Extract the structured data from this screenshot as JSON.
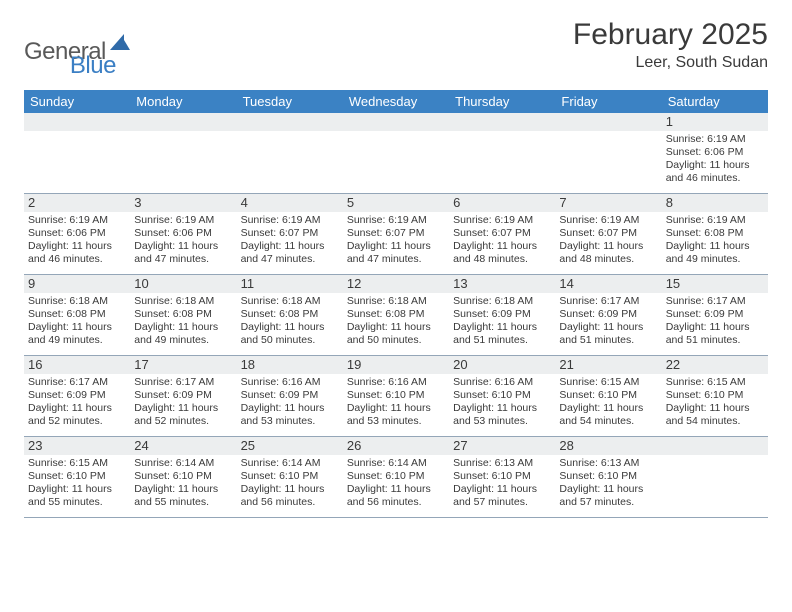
{
  "logo": {
    "text1": "General",
    "text2": "Blue",
    "color_general": "#595959",
    "color_blue": "#3b7fc4"
  },
  "header": {
    "title": "February 2025",
    "location": "Leer, South Sudan"
  },
  "colors": {
    "header_bar": "#3b82c4",
    "header_text": "#ffffff",
    "daynum_bg": "#eceeef",
    "divider": "#94a6b8",
    "body_text": "#3a3a3a",
    "background": "#ffffff"
  },
  "day_headers": [
    "Sunday",
    "Monday",
    "Tuesday",
    "Wednesday",
    "Thursday",
    "Friday",
    "Saturday"
  ],
  "weeks": [
    [
      {
        "empty": true
      },
      {
        "empty": true
      },
      {
        "empty": true
      },
      {
        "empty": true
      },
      {
        "empty": true
      },
      {
        "empty": true
      },
      {
        "n": "1",
        "sunrise": "Sunrise: 6:19 AM",
        "sunset": "Sunset: 6:06 PM",
        "daylight1": "Daylight: 11 hours",
        "daylight2": "and 46 minutes."
      }
    ],
    [
      {
        "n": "2",
        "sunrise": "Sunrise: 6:19 AM",
        "sunset": "Sunset: 6:06 PM",
        "daylight1": "Daylight: 11 hours",
        "daylight2": "and 46 minutes."
      },
      {
        "n": "3",
        "sunrise": "Sunrise: 6:19 AM",
        "sunset": "Sunset: 6:06 PM",
        "daylight1": "Daylight: 11 hours",
        "daylight2": "and 47 minutes."
      },
      {
        "n": "4",
        "sunrise": "Sunrise: 6:19 AM",
        "sunset": "Sunset: 6:07 PM",
        "daylight1": "Daylight: 11 hours",
        "daylight2": "and 47 minutes."
      },
      {
        "n": "5",
        "sunrise": "Sunrise: 6:19 AM",
        "sunset": "Sunset: 6:07 PM",
        "daylight1": "Daylight: 11 hours",
        "daylight2": "and 47 minutes."
      },
      {
        "n": "6",
        "sunrise": "Sunrise: 6:19 AM",
        "sunset": "Sunset: 6:07 PM",
        "daylight1": "Daylight: 11 hours",
        "daylight2": "and 48 minutes."
      },
      {
        "n": "7",
        "sunrise": "Sunrise: 6:19 AM",
        "sunset": "Sunset: 6:07 PM",
        "daylight1": "Daylight: 11 hours",
        "daylight2": "and 48 minutes."
      },
      {
        "n": "8",
        "sunrise": "Sunrise: 6:19 AM",
        "sunset": "Sunset: 6:08 PM",
        "daylight1": "Daylight: 11 hours",
        "daylight2": "and 49 minutes."
      }
    ],
    [
      {
        "n": "9",
        "sunrise": "Sunrise: 6:18 AM",
        "sunset": "Sunset: 6:08 PM",
        "daylight1": "Daylight: 11 hours",
        "daylight2": "and 49 minutes."
      },
      {
        "n": "10",
        "sunrise": "Sunrise: 6:18 AM",
        "sunset": "Sunset: 6:08 PM",
        "daylight1": "Daylight: 11 hours",
        "daylight2": "and 49 minutes."
      },
      {
        "n": "11",
        "sunrise": "Sunrise: 6:18 AM",
        "sunset": "Sunset: 6:08 PM",
        "daylight1": "Daylight: 11 hours",
        "daylight2": "and 50 minutes."
      },
      {
        "n": "12",
        "sunrise": "Sunrise: 6:18 AM",
        "sunset": "Sunset: 6:08 PM",
        "daylight1": "Daylight: 11 hours",
        "daylight2": "and 50 minutes."
      },
      {
        "n": "13",
        "sunrise": "Sunrise: 6:18 AM",
        "sunset": "Sunset: 6:09 PM",
        "daylight1": "Daylight: 11 hours",
        "daylight2": "and 51 minutes."
      },
      {
        "n": "14",
        "sunrise": "Sunrise: 6:17 AM",
        "sunset": "Sunset: 6:09 PM",
        "daylight1": "Daylight: 11 hours",
        "daylight2": "and 51 minutes."
      },
      {
        "n": "15",
        "sunrise": "Sunrise: 6:17 AM",
        "sunset": "Sunset: 6:09 PM",
        "daylight1": "Daylight: 11 hours",
        "daylight2": "and 51 minutes."
      }
    ],
    [
      {
        "n": "16",
        "sunrise": "Sunrise: 6:17 AM",
        "sunset": "Sunset: 6:09 PM",
        "daylight1": "Daylight: 11 hours",
        "daylight2": "and 52 minutes."
      },
      {
        "n": "17",
        "sunrise": "Sunrise: 6:17 AM",
        "sunset": "Sunset: 6:09 PM",
        "daylight1": "Daylight: 11 hours",
        "daylight2": "and 52 minutes."
      },
      {
        "n": "18",
        "sunrise": "Sunrise: 6:16 AM",
        "sunset": "Sunset: 6:09 PM",
        "daylight1": "Daylight: 11 hours",
        "daylight2": "and 53 minutes."
      },
      {
        "n": "19",
        "sunrise": "Sunrise: 6:16 AM",
        "sunset": "Sunset: 6:10 PM",
        "daylight1": "Daylight: 11 hours",
        "daylight2": "and 53 minutes."
      },
      {
        "n": "20",
        "sunrise": "Sunrise: 6:16 AM",
        "sunset": "Sunset: 6:10 PM",
        "daylight1": "Daylight: 11 hours",
        "daylight2": "and 53 minutes."
      },
      {
        "n": "21",
        "sunrise": "Sunrise: 6:15 AM",
        "sunset": "Sunset: 6:10 PM",
        "daylight1": "Daylight: 11 hours",
        "daylight2": "and 54 minutes."
      },
      {
        "n": "22",
        "sunrise": "Sunrise: 6:15 AM",
        "sunset": "Sunset: 6:10 PM",
        "daylight1": "Daylight: 11 hours",
        "daylight2": "and 54 minutes."
      }
    ],
    [
      {
        "n": "23",
        "sunrise": "Sunrise: 6:15 AM",
        "sunset": "Sunset: 6:10 PM",
        "daylight1": "Daylight: 11 hours",
        "daylight2": "and 55 minutes."
      },
      {
        "n": "24",
        "sunrise": "Sunrise: 6:14 AM",
        "sunset": "Sunset: 6:10 PM",
        "daylight1": "Daylight: 11 hours",
        "daylight2": "and 55 minutes."
      },
      {
        "n": "25",
        "sunrise": "Sunrise: 6:14 AM",
        "sunset": "Sunset: 6:10 PM",
        "daylight1": "Daylight: 11 hours",
        "daylight2": "and 56 minutes."
      },
      {
        "n": "26",
        "sunrise": "Sunrise: 6:14 AM",
        "sunset": "Sunset: 6:10 PM",
        "daylight1": "Daylight: 11 hours",
        "daylight2": "and 56 minutes."
      },
      {
        "n": "27",
        "sunrise": "Sunrise: 6:13 AM",
        "sunset": "Sunset: 6:10 PM",
        "daylight1": "Daylight: 11 hours",
        "daylight2": "and 57 minutes."
      },
      {
        "n": "28",
        "sunrise": "Sunrise: 6:13 AM",
        "sunset": "Sunset: 6:10 PM",
        "daylight1": "Daylight: 11 hours",
        "daylight2": "and 57 minutes."
      },
      {
        "empty": true
      }
    ]
  ]
}
